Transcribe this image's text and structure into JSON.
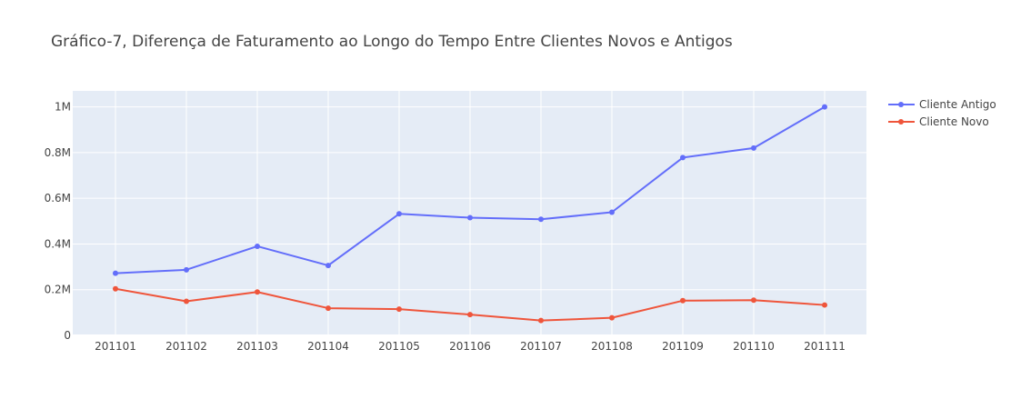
{
  "chart_data": {
    "type": "line",
    "title": "Gráfico-7, Diferença de Faturamento ao Longo do Tempo Entre Clientes Novos e Antigos",
    "xlabel": "",
    "ylabel": "",
    "categories": [
      "201101",
      "201102",
      "201103",
      "201104",
      "201105",
      "201106",
      "201107",
      "201108",
      "201109",
      "201110",
      "201111"
    ],
    "ylim": [
      0,
      1070000
    ],
    "yticks": [
      {
        "value": 0,
        "label": "0"
      },
      {
        "value": 200000,
        "label": "0.2M"
      },
      {
        "value": 400000,
        "label": "0.4M"
      },
      {
        "value": 600000,
        "label": "0.6M"
      },
      {
        "value": 800000,
        "label": "0.8M"
      },
      {
        "value": 1000000,
        "label": "1M"
      }
    ],
    "grid": true,
    "legend_position": "top-right",
    "series": [
      {
        "name": "Cliente Antigo",
        "color": "#636efa",
        "values": [
          272000,
          287000,
          390000,
          306000,
          532000,
          515000,
          508000,
          539000,
          778000,
          820000,
          1000000
        ]
      },
      {
        "name": "Cliente Novo",
        "color": "#ef553b",
        "values": [
          204000,
          149000,
          190000,
          119000,
          115000,
          91000,
          65000,
          77000,
          152000,
          154000,
          133000
        ]
      }
    ]
  }
}
